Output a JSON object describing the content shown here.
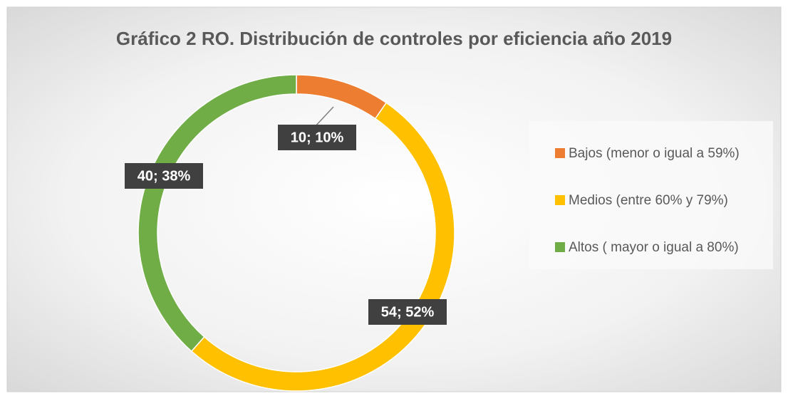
{
  "chart_data": {
    "type": "donut",
    "title": "Gráfico 2 RO. Distribución de controles por eficiencia año 2019",
    "categories": [
      "Bajos (menor o igual a 59%)",
      "Medios (entre 60% y 79%)",
      "Altos ( mayor o igual a 80%)"
    ],
    "values": [
      10,
      54,
      40
    ],
    "value_labels": [
      "10; 10%",
      "54; 52%",
      "40; 38%"
    ],
    "colors": [
      "#ed7d31",
      "#ffc000",
      "#70ad47"
    ],
    "legend": "right"
  }
}
